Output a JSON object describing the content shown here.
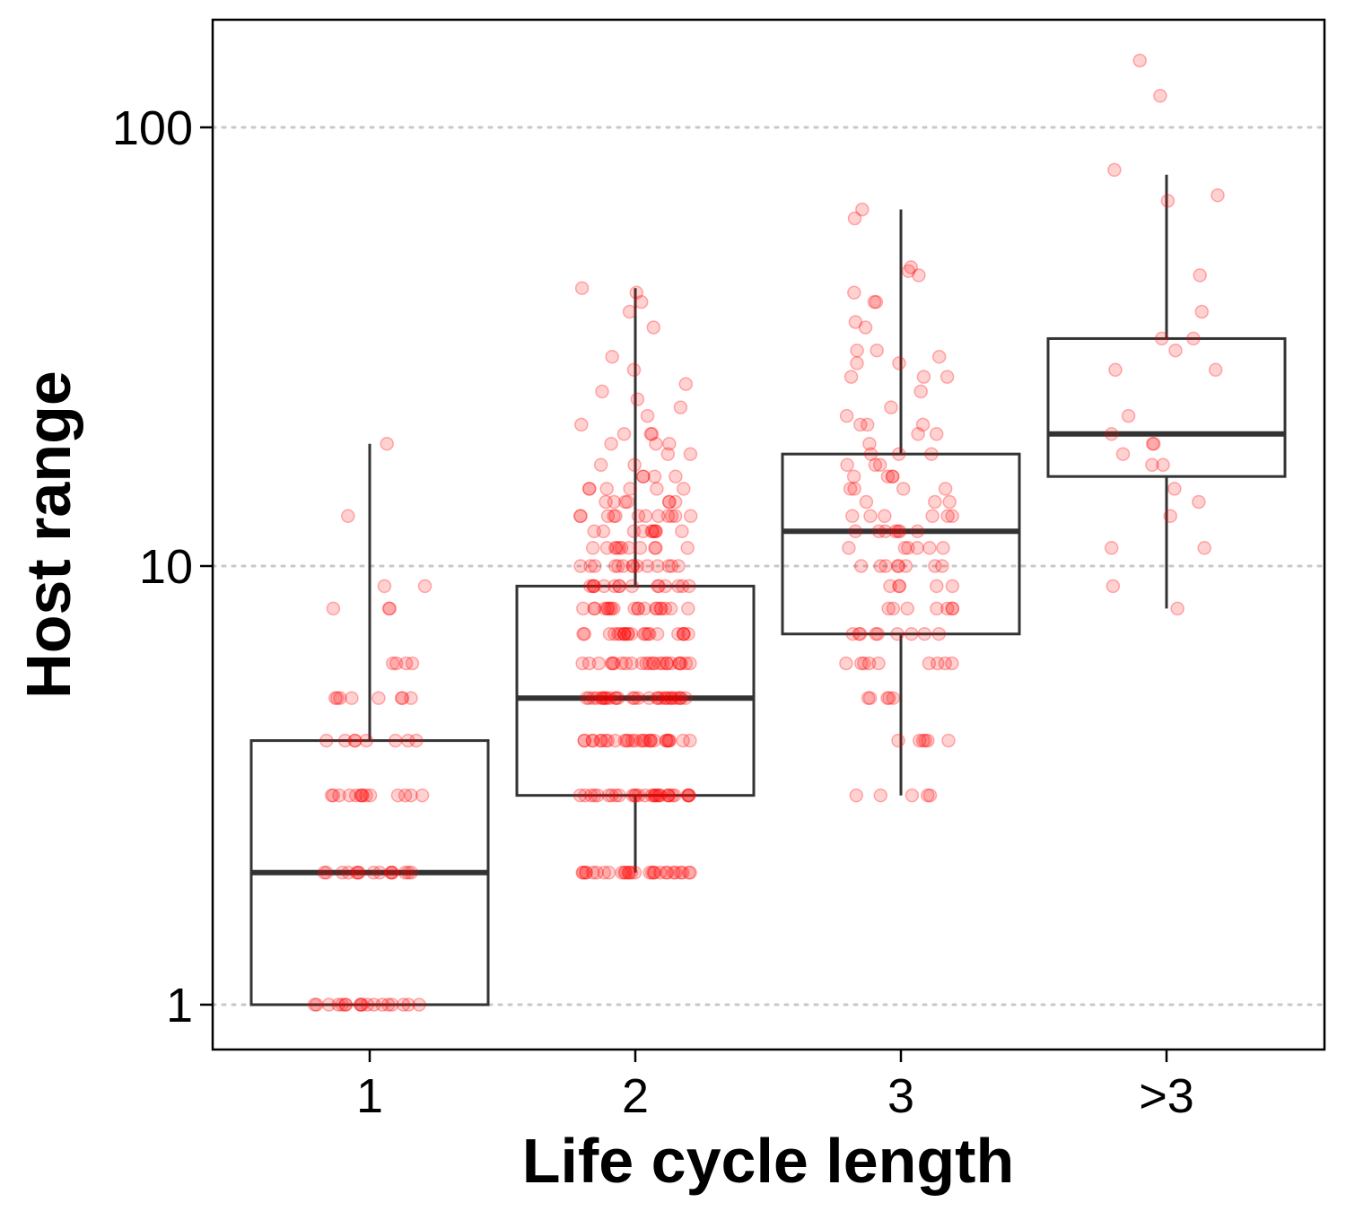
{
  "chart_data": {
    "type": "box",
    "xlabel": "Life cycle length",
    "ylabel": "Host range",
    "y_scale": "log10",
    "ylim": [
      0.78,
      168
    ],
    "y_ticks": [
      {
        "value": 1,
        "label": "1"
      },
      {
        "value": 10,
        "label": "10"
      },
      {
        "value": 100,
        "label": "100"
      }
    ],
    "grid": "horizontal dotted at major y ticks",
    "colors": {
      "points": "#ff0000",
      "box": "#333333",
      "grid": "#c8c8c8",
      "axis": "#000000"
    },
    "categories": [
      "1",
      "2",
      "3",
      ">3"
    ],
    "boxes": [
      {
        "category": "1",
        "whisker_low": 1,
        "q1": 1,
        "median": 2,
        "q3": 4,
        "whisker_high": 19
      },
      {
        "category": "2",
        "whisker_low": 2,
        "q1": 3,
        "median": 5,
        "q3": 9,
        "whisker_high": 43
      },
      {
        "category": "3",
        "whisker_low": 3,
        "q1": 7,
        "median": 12,
        "q3": 18,
        "whisker_high": 65
      },
      {
        "category": ">3",
        "whisker_low": 8,
        "q1": 16,
        "median": 20,
        "q3": 33,
        "whisker_high": 78
      }
    ],
    "points": [
      {
        "category": "1",
        "values": [
          19,
          13,
          9,
          9,
          8,
          8,
          8,
          6,
          6,
          6,
          6,
          5,
          5,
          5,
          5,
          5,
          5,
          5,
          5,
          4,
          4,
          4,
          4,
          4,
          4,
          4,
          4,
          3,
          3,
          3,
          3,
          3,
          3,
          3,
          3,
          3,
          3,
          3,
          3,
          3,
          3,
          2,
          2,
          2,
          2,
          2,
          2,
          2,
          2,
          2,
          2,
          2,
          2,
          2,
          2,
          2,
          1,
          1,
          1,
          1,
          1,
          1,
          1,
          1,
          1,
          1,
          1,
          1,
          1,
          1,
          1,
          1,
          1,
          1
        ]
      },
      {
        "category": "2",
        "values": [
          43,
          40,
          38,
          42,
          35,
          30,
          28,
          26,
          25,
          24,
          23,
          22,
          21,
          20,
          20,
          20,
          19,
          19,
          19,
          18,
          18,
          17,
          17,
          16,
          16,
          16,
          16,
          15,
          15,
          15,
          15,
          15,
          15,
          14,
          14,
          14,
          14,
          14,
          14,
          14,
          13,
          13,
          13,
          13,
          13,
          13,
          13,
          13,
          13,
          13,
          13,
          13,
          12,
          12,
          12,
          12,
          12,
          12,
          12,
          12,
          12,
          12,
          11,
          11,
          11,
          11,
          11,
          11,
          11,
          11,
          11,
          11,
          11,
          10,
          10,
          10,
          10,
          10,
          10,
          10,
          10,
          10,
          10,
          10,
          10,
          10,
          10,
          9,
          9,
          9,
          9,
          9,
          9,
          9,
          9,
          9,
          9,
          9,
          9,
          9,
          9,
          9,
          8,
          8,
          8,
          8,
          8,
          8,
          8,
          8,
          8,
          8,
          8,
          8,
          8,
          8,
          8,
          8,
          8,
          8,
          8,
          8,
          7,
          7,
          7,
          7,
          7,
          7,
          7,
          7,
          7,
          7,
          7,
          7,
          7,
          7,
          7,
          7,
          7,
          7,
          7,
          7,
          7,
          7,
          6,
          6,
          6,
          6,
          6,
          6,
          6,
          6,
          6,
          6,
          6,
          6,
          6,
          6,
          6,
          6,
          6,
          6,
          6,
          6,
          6,
          6,
          6,
          6,
          5,
          5,
          5,
          5,
          5,
          5,
          5,
          5,
          5,
          5,
          5,
          5,
          5,
          5,
          5,
          5,
          5,
          5,
          5,
          5,
          5,
          5,
          5,
          5,
          5,
          5,
          5,
          5,
          5,
          5,
          4,
          4,
          4,
          4,
          4,
          4,
          4,
          4,
          4,
          4,
          4,
          4,
          4,
          4,
          4,
          4,
          4,
          4,
          4,
          4,
          4,
          4,
          4,
          4,
          4,
          4,
          4,
          4,
          3,
          3,
          3,
          3,
          3,
          3,
          3,
          3,
          3,
          3,
          3,
          3,
          3,
          3,
          3,
          3,
          3,
          3,
          3,
          3,
          3,
          3,
          3,
          3,
          3,
          3,
          3,
          3,
          3,
          3,
          2,
          2,
          2,
          2,
          2,
          2,
          2,
          2,
          2,
          2,
          2,
          2,
          2,
          2,
          2,
          2,
          2,
          2,
          2,
          2,
          2,
          2,
          2,
          2,
          2,
          2,
          2,
          2
        ]
      },
      {
        "category": "3",
        "values": [
          65,
          62,
          48,
          47,
          46,
          42,
          40,
          40,
          36,
          35,
          31,
          31,
          30,
          29,
          29,
          27,
          27,
          27,
          25,
          23,
          22,
          21,
          21,
          21,
          20,
          20,
          19,
          18,
          18,
          18,
          17,
          17,
          17,
          16,
          16,
          16,
          16,
          15,
          15,
          15,
          15,
          14,
          14,
          14,
          13,
          13,
          13,
          13,
          13,
          13,
          12,
          12,
          12,
          12,
          12,
          12,
          12,
          11,
          11,
          11,
          11,
          11,
          11,
          10,
          10,
          10,
          10,
          10,
          10,
          10,
          10,
          9,
          9,
          9,
          9,
          9,
          8,
          8,
          8,
          8,
          8,
          8,
          8,
          7,
          7,
          7,
          7,
          7,
          7,
          7,
          7,
          7,
          6,
          6,
          6,
          6,
          6,
          6,
          6,
          6,
          6,
          5,
          5,
          5,
          5,
          5,
          4,
          4,
          4,
          4,
          4,
          4,
          3,
          3,
          3,
          3,
          3
        ]
      },
      {
        "category": ">3",
        "values": [
          142,
          118,
          80,
          70,
          68,
          46,
          38,
          33,
          33,
          31,
          28,
          28,
          22,
          20,
          19,
          19,
          18,
          17,
          17,
          15,
          14,
          13,
          11,
          11,
          9,
          8
        ]
      }
    ]
  }
}
